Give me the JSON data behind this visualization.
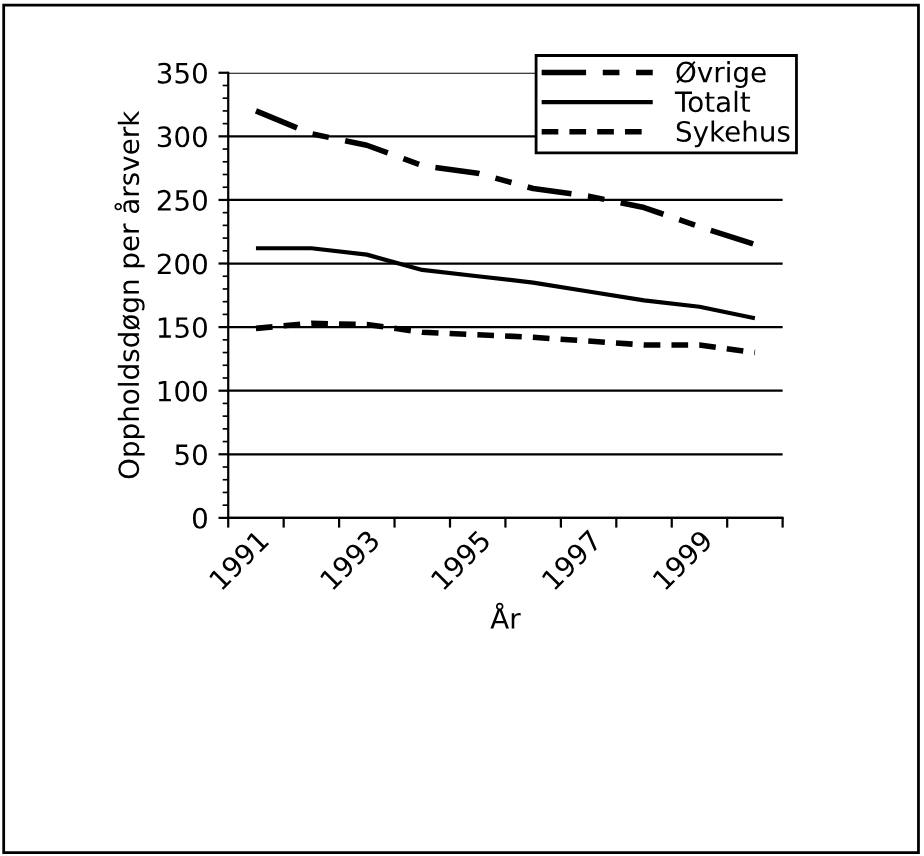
{
  "chart_data": {
    "type": "line",
    "xlabel": "År",
    "ylabel": "Oppholdsdøgn per årsverk",
    "categories": [
      "1991",
      null,
      "1993",
      null,
      "1995",
      null,
      "1997",
      null,
      "1999",
      null
    ],
    "series": [
      {
        "name": "Øvrige",
        "color": "#000000",
        "line_style": "dashed",
        "values": [
          320,
          302,
          293,
          277,
          271,
          259,
          253,
          244,
          229,
          215
        ]
      },
      {
        "name": "Totalt",
        "color": "#000000",
        "line_style": "solid",
        "values": [
          212,
          212,
          207,
          195,
          190,
          185,
          178,
          171,
          166,
          157
        ]
      },
      {
        "name": "Sykehus",
        "color": "#000000",
        "line_style": "dotted",
        "values": [
          149,
          153,
          152,
          146,
          144,
          142,
          139,
          136,
          136,
          130
        ]
      }
    ],
    "ylim": [
      0,
      350
    ],
    "yticks": [
      0,
      50,
      100,
      150,
      200,
      250,
      300,
      350
    ],
    "grid": "y",
    "legend": "top right",
    "marker": "none"
  }
}
